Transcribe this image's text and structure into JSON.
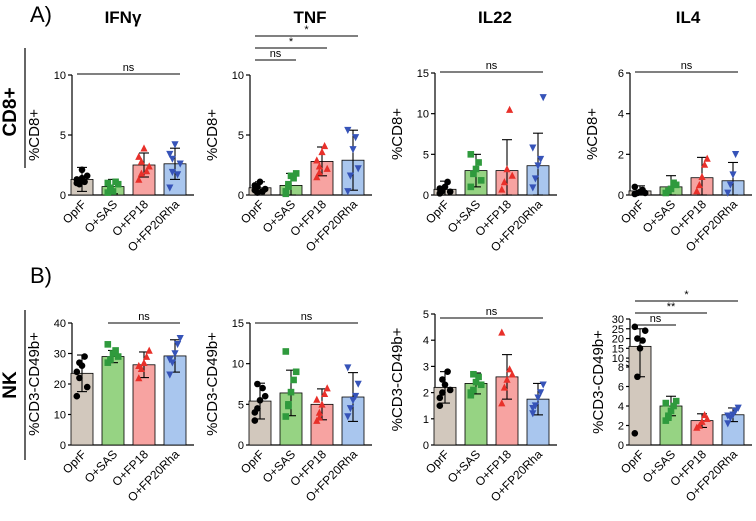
{
  "panel_labels": [
    "A)",
    "B)"
  ],
  "row_labels": [
    "CD8+",
    "NK"
  ],
  "column_titles": [
    "IFNγ",
    "TNF",
    "IL22",
    "IL4"
  ],
  "colors": {
    "OprF": "#d2c8bd",
    "O+SAS": "#96d383",
    "O+FP18": "#f7a3a1",
    "O+FP20Rha": "#a9c6ee",
    "dot_OprF": "#000000",
    "dot_O+SAS": "#2f9a3d",
    "dot_O+FP18": "#e8302a",
    "dot_O+FP20Rha": "#3653b8"
  },
  "chart_data": [
    {
      "type": "bar",
      "title": "IFNγ",
      "ylabel": "%CD8+",
      "categories": [
        "OprF",
        "O+SAS",
        "O+FP18",
        "O+FP20Rha"
      ],
      "values": [
        1.3,
        0.7,
        2.5,
        2.6
      ],
      "errors": [
        1.0,
        0.6,
        1.0,
        1.3
      ],
      "ylim": [
        0,
        10
      ],
      "yticks": [
        0,
        5,
        10
      ],
      "points": [
        [
          1.0,
          1.2,
          1.4,
          1.1,
          1.6,
          1.3,
          0.9,
          2.1
        ],
        [
          0.2,
          0.6,
          0.3,
          1.1,
          0.9,
          1.0,
          0.4
        ],
        [
          1.3,
          2.8,
          3.9,
          2.0,
          2.4,
          3.2,
          1.8
        ],
        [
          0.6,
          3.0,
          4.2,
          1.7,
          2.6,
          3.4,
          1.9
        ]
      ],
      "significance": [
        {
          "from": 0,
          "to": 3,
          "label": "ns"
        }
      ]
    },
    {
      "type": "bar",
      "title": "TNF",
      "ylabel": "%CD8+",
      "categories": [
        "OprF",
        "O+SAS",
        "O+FP18",
        "O+FP20Rha"
      ],
      "values": [
        0.6,
        0.8,
        2.8,
        2.9
      ],
      "errors": [
        0.5,
        1.0,
        1.2,
        2.5
      ],
      "ylim": [
        0,
        10
      ],
      "yticks": [
        0,
        5,
        10
      ],
      "points": [
        [
          0.4,
          0.7,
          1.1,
          0.3,
          0.5,
          0.8,
          0.2
        ],
        [
          0.1,
          0.9,
          1.6,
          1.4,
          1.8,
          0.3,
          0.7
        ],
        [
          1.5,
          2.4,
          3.6,
          4.1,
          2.2,
          2.9,
          1.9
        ],
        [
          0.3,
          1.6,
          3.8,
          4.8,
          2.2,
          5.4
        ]
      ],
      "significance": [
        {
          "from": 0,
          "to": 1,
          "label": "ns"
        },
        {
          "from": 0,
          "to": 2,
          "label": "*"
        },
        {
          "from": 0,
          "to": 3,
          "label": "*"
        }
      ]
    },
    {
      "type": "bar",
      "title": "IL22",
      "ylabel": "%CD8+",
      "categories": [
        "OprF",
        "O+SAS",
        "O+FP18",
        "O+FP20Rha"
      ],
      "values": [
        0.7,
        3.0,
        3.0,
        3.6
      ],
      "errors": [
        1.0,
        2.0,
        3.8,
        4.0
      ],
      "ylim": [
        0,
        15
      ],
      "yticks": [
        0,
        5,
        10,
        15
      ],
      "points": [
        [
          0.2,
          0.5,
          1.0,
          1.6,
          0.4,
          0.8
        ],
        [
          1.0,
          2.6,
          3.2,
          4.0,
          1.8,
          5.0
        ],
        [
          0.7,
          1.6,
          3.2,
          10.5,
          2.4
        ],
        [
          0.9,
          2.0,
          3.6,
          4.4,
          12.0,
          5.8
        ]
      ],
      "significance": [
        {
          "from": 0,
          "to": 3,
          "label": "ns"
        }
      ]
    },
    {
      "type": "bar",
      "title": "IL4",
      "ylabel": "%CD8+",
      "categories": [
        "OprF",
        "O+SAS",
        "O+FP18",
        "O+FP20Rha"
      ],
      "values": [
        0.2,
        0.4,
        0.85,
        0.7
      ],
      "errors": [
        0.25,
        0.55,
        1.0,
        0.9
      ],
      "ylim": [
        0,
        6
      ],
      "yticks": [
        0,
        2,
        4,
        6
      ],
      "points": [
        [
          0.05,
          0.1,
          0.15,
          0.25,
          0.1,
          0.4
        ],
        [
          0.1,
          0.2,
          0.3,
          0.6,
          0.5
        ],
        [
          0.2,
          0.5,
          0.9,
          1.5,
          1.8
        ],
        [
          0.1,
          0.5,
          1.0,
          2.0
        ]
      ],
      "significance": [
        {
          "from": 0,
          "to": 3,
          "label": "ns"
        }
      ]
    },
    {
      "type": "bar",
      "title": "",
      "ylabel": "%CD3-CD49b+",
      "categories": [
        "OprF",
        "O+SAS",
        "O+FP18",
        "O+FP20Rha"
      ],
      "values": [
        23.5,
        29.0,
        26.3,
        29.2
      ],
      "errors": [
        6.0,
        2.0,
        4.2,
        5.3
      ],
      "ylim": [
        0,
        40
      ],
      "yticks": [
        0,
        10,
        20,
        30,
        40
      ],
      "points": [
        [
          16,
          22,
          26,
          29,
          19,
          24,
          27
        ],
        [
          27,
          28,
          30,
          31,
          29,
          33
        ],
        [
          22,
          25,
          27,
          29,
          31,
          26
        ],
        [
          23,
          27,
          30,
          33,
          35,
          28
        ]
      ],
      "significance": [
        {
          "from": 1,
          "to": 3,
          "label": "ns"
        }
      ]
    },
    {
      "type": "bar",
      "title": "",
      "ylabel": "%CD3-CD49b+",
      "categories": [
        "OprF",
        "O+SAS",
        "O+FP18",
        "O+FP20Rha"
      ],
      "values": [
        5.4,
        6.4,
        5.0,
        5.9
      ],
      "errors": [
        2.2,
        2.8,
        1.9,
        3.0
      ],
      "ylim": [
        0,
        15
      ],
      "yticks": [
        0,
        5,
        10,
        15
      ],
      "points": [
        [
          3.0,
          4.5,
          5.5,
          7.0,
          6.0,
          4.0,
          7.5
        ],
        [
          3.5,
          5.0,
          6.5,
          8.0,
          9.0,
          11.5,
          4.8
        ],
        [
          3.0,
          4.0,
          5.0,
          6.3,
          7.0,
          5.6,
          3.4
        ],
        [
          3.5,
          4.5,
          5.5,
          6.0,
          7.5,
          9.5
        ]
      ],
      "significance": [
        {
          "from": 0,
          "to": 3,
          "label": "ns"
        }
      ]
    },
    {
      "type": "bar",
      "title": "",
      "ylabel": "%CD3-CD49b+",
      "categories": [
        "OprF",
        "O+SAS",
        "O+FP18",
        "O+FP20Rha"
      ],
      "values": [
        2.2,
        2.35,
        2.6,
        1.75
      ],
      "errors": [
        0.6,
        0.4,
        0.85,
        0.6
      ],
      "ylim": [
        0,
        5
      ],
      "yticks": [
        0,
        1,
        2,
        3,
        4,
        5
      ],
      "points": [
        [
          1.5,
          2.0,
          2.3,
          2.8,
          2.1,
          1.8,
          2.5
        ],
        [
          1.9,
          2.1,
          2.4,
          2.6,
          2.3,
          2.0,
          2.7
        ],
        [
          1.6,
          2.2,
          2.5,
          2.9,
          2.7,
          4.3
        ],
        [
          1.2,
          1.5,
          1.8,
          2.0,
          2.3,
          1.4
        ]
      ],
      "significance": [
        {
          "from": 0,
          "to": 3,
          "label": "ns"
        }
      ]
    },
    {
      "type": "bar",
      "title": "",
      "ylabel": "%CD3-CD49b+",
      "categories": [
        "OprF",
        "O+SAS",
        "O+FP18",
        "O+FP20Rha"
      ],
      "values": [
        16.0,
        4.0,
        2.5,
        3.1
      ],
      "errors": [
        9.0,
        1.0,
        0.7,
        0.7
      ],
      "broken_axis": true,
      "lower_ylim": [
        0,
        8
      ],
      "lower_yticks": [
        0,
        2,
        4,
        6,
        8
      ],
      "upper_ylim": [
        8,
        30
      ],
      "upper_yticks": [
        10,
        15,
        20,
        25,
        30
      ],
      "points": [
        [
          1.2,
          7.0,
          15.0,
          19.0,
          24.0,
          26.0,
          20.0
        ],
        [
          2.5,
          3.0,
          3.5,
          4.0,
          4.5,
          4.3,
          2.8
        ],
        [
          1.8,
          2.0,
          2.4,
          3.1,
          2.7
        ],
        [
          2.2,
          2.8,
          3.1,
          3.5,
          3.8,
          3.0
        ]
      ],
      "significance": [
        {
          "from": 0,
          "to": 1,
          "label": "ns"
        },
        {
          "from": 0,
          "to": 2,
          "label": "**"
        },
        {
          "from": 0,
          "to": 3,
          "label": "*"
        }
      ]
    }
  ]
}
